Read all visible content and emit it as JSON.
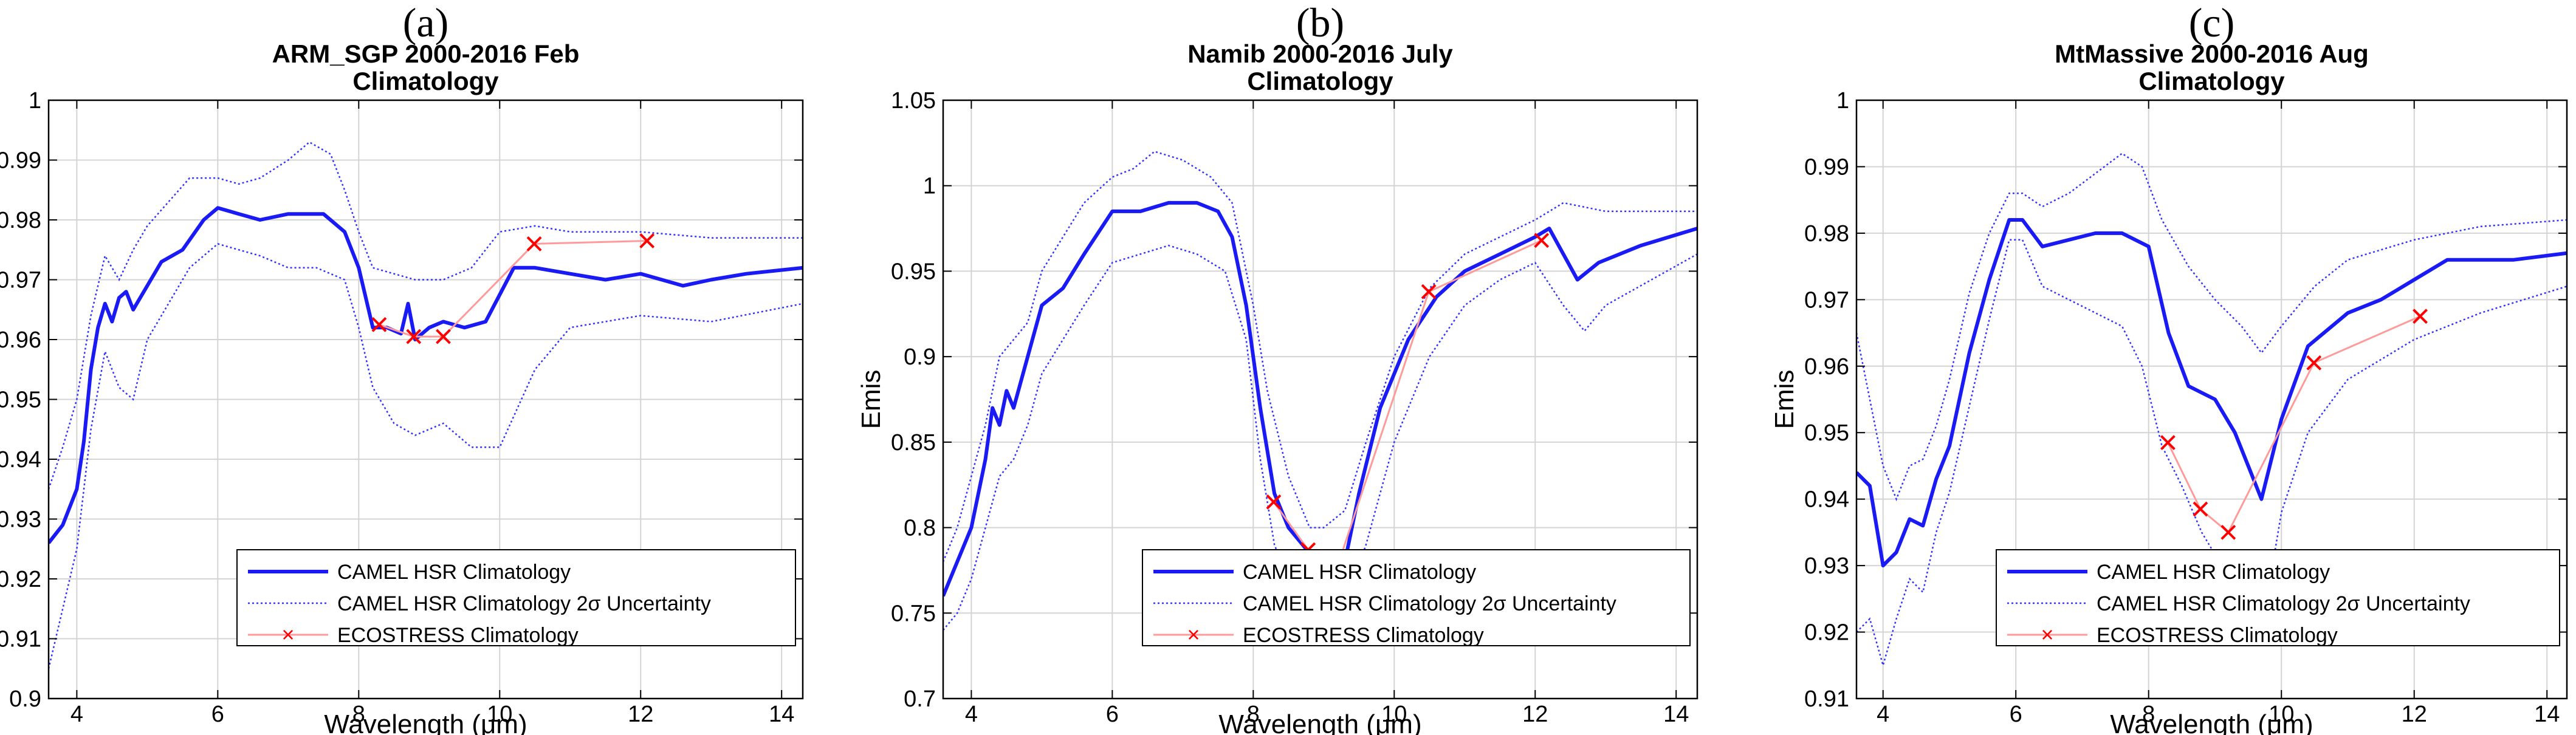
{
  "chart_data": [
    {
      "type": "line",
      "panel": "(a)",
      "title": [
        "ARM_SGP 2000-2016 Feb",
        "Climatology"
      ],
      "xlabel": "Wavelength (μm)",
      "ylabel": "Emis",
      "xlim": [
        3.6,
        14.3
      ],
      "ylim": [
        0.9,
        1.0
      ],
      "xticks": [
        4,
        6,
        8,
        10,
        12,
        14
      ],
      "yticks": [
        0.9,
        0.91,
        0.92,
        0.93,
        0.94,
        0.95,
        0.96,
        0.97,
        0.98,
        0.99,
        1.0
      ],
      "ytick_labels": [
        "0.9",
        "0.91",
        "0.92",
        "0.93",
        "0.94",
        "0.95",
        "0.96",
        "0.97",
        "0.98",
        "0.99",
        "1"
      ],
      "grid": true,
      "legend_position": "bottom-right",
      "legend": [
        "CAMEL HSR Climatology",
        "CAMEL HSR Climatology 2σ Uncertainty",
        "ECOSTRESS Climatology"
      ],
      "series": [
        {
          "name": "CAMEL HSR Climatology",
          "x": [
            3.6,
            3.8,
            4.0,
            4.1,
            4.2,
            4.3,
            4.4,
            4.5,
            4.6,
            4.7,
            4.8,
            5.0,
            5.2,
            5.5,
            5.8,
            6.0,
            6.3,
            6.6,
            7.0,
            7.5,
            7.8,
            8.0,
            8.2,
            8.4,
            8.6,
            8.7,
            8.8,
            9.0,
            9.2,
            9.5,
            9.8,
            10.2,
            10.5,
            11.0,
            11.5,
            12.0,
            12.3,
            12.6,
            13.0,
            13.5,
            14.3
          ],
          "y": [
            0.926,
            0.929,
            0.935,
            0.943,
            0.955,
            0.962,
            0.966,
            0.963,
            0.967,
            0.968,
            0.965,
            0.969,
            0.973,
            0.975,
            0.98,
            0.982,
            0.981,
            0.98,
            0.981,
            0.981,
            0.978,
            0.972,
            0.962,
            0.962,
            0.961,
            0.966,
            0.96,
            0.962,
            0.963,
            0.962,
            0.963,
            0.972,
            0.972,
            0.971,
            0.97,
            0.971,
            0.97,
            0.969,
            0.97,
            0.971,
            0.972
          ]
        },
        {
          "name": "CAMEL HSR Climatology 2σ Uncertainty (upper)",
          "x": [
            3.6,
            3.8,
            4.0,
            4.2,
            4.4,
            4.6,
            4.8,
            5.0,
            5.3,
            5.6,
            6.0,
            6.3,
            6.6,
            7.0,
            7.3,
            7.6,
            7.8,
            8.0,
            8.2,
            8.5,
            8.8,
            9.2,
            9.6,
            10.0,
            10.5,
            11.0,
            12.0,
            13.0,
            14.3
          ],
          "y": [
            0.935,
            0.942,
            0.95,
            0.964,
            0.974,
            0.97,
            0.975,
            0.979,
            0.983,
            0.987,
            0.987,
            0.986,
            0.987,
            0.99,
            0.993,
            0.991,
            0.985,
            0.978,
            0.972,
            0.971,
            0.97,
            0.97,
            0.972,
            0.978,
            0.979,
            0.978,
            0.978,
            0.977,
            0.977
          ]
        },
        {
          "name": "CAMEL HSR Climatology 2σ Uncertainty (lower)",
          "x": [
            3.6,
            3.8,
            4.0,
            4.2,
            4.4,
            4.6,
            4.8,
            5.0,
            5.3,
            5.6,
            6.0,
            6.3,
            6.6,
            7.0,
            7.4,
            7.8,
            8.0,
            8.2,
            8.5,
            8.8,
            9.2,
            9.6,
            10.0,
            10.5,
            11.0,
            12.0,
            13.0,
            14.3
          ],
          "y": [
            0.905,
            0.915,
            0.925,
            0.945,
            0.958,
            0.952,
            0.95,
            0.96,
            0.966,
            0.972,
            0.976,
            0.975,
            0.974,
            0.972,
            0.972,
            0.97,
            0.962,
            0.952,
            0.946,
            0.944,
            0.946,
            0.942,
            0.942,
            0.955,
            0.962,
            0.964,
            0.963,
            0.966
          ]
        },
        {
          "name": "ECOSTRESS Climatology",
          "x": [
            8.29,
            8.78,
            9.2,
            10.49,
            12.09
          ],
          "y": [
            0.9625,
            0.9605,
            0.9605,
            0.976,
            0.9765
          ]
        }
      ]
    },
    {
      "type": "line",
      "panel": "(b)",
      "title": [
        "Namib 2000-2016 July",
        "Climatology"
      ],
      "xlabel": "Wavelength (μm)",
      "ylabel": "Emis",
      "xlim": [
        3.6,
        14.3
      ],
      "ylim": [
        0.7,
        1.05
      ],
      "xticks": [
        4,
        6,
        8,
        10,
        12,
        14
      ],
      "yticks": [
        0.7,
        0.75,
        0.8,
        0.85,
        0.9,
        0.95,
        1.0,
        1.05
      ],
      "ytick_labels": [
        "0.7",
        "0.75",
        "0.8",
        "0.85",
        "0.9",
        "0.95",
        "1",
        "1.05"
      ],
      "grid": true,
      "legend_position": "bottom-right",
      "legend": [
        "CAMEL HSR Climatology",
        "CAMEL HSR Climatology 2σ Uncertainty",
        "ECOSTRESS Climatology"
      ],
      "series": [
        {
          "name": "CAMEL HSR Climatology",
          "x": [
            3.6,
            3.8,
            4.0,
            4.1,
            4.2,
            4.3,
            4.4,
            4.5,
            4.6,
            4.8,
            5.0,
            5.3,
            5.6,
            6.0,
            6.4,
            6.8,
            7.2,
            7.5,
            7.7,
            7.9,
            8.1,
            8.3,
            8.5,
            8.7,
            8.9,
            9.1,
            9.3,
            9.5,
            9.8,
            10.2,
            10.6,
            11.0,
            11.5,
            12.0,
            12.2,
            12.4,
            12.6,
            12.9,
            13.5,
            14.3
          ],
          "y": [
            0.76,
            0.78,
            0.8,
            0.82,
            0.84,
            0.87,
            0.86,
            0.88,
            0.87,
            0.9,
            0.93,
            0.94,
            0.96,
            0.985,
            0.985,
            0.99,
            0.99,
            0.985,
            0.97,
            0.93,
            0.87,
            0.82,
            0.8,
            0.79,
            0.78,
            0.775,
            0.78,
            0.82,
            0.87,
            0.91,
            0.935,
            0.95,
            0.96,
            0.97,
            0.975,
            0.96,
            0.945,
            0.955,
            0.965,
            0.975
          ]
        },
        {
          "name": "CAMEL HSR Climatology 2σ Uncertainty (upper)",
          "x": [
            3.6,
            3.8,
            4.0,
            4.2,
            4.4,
            4.6,
            4.8,
            5.0,
            5.3,
            5.6,
            6.0,
            6.3,
            6.6,
            7.0,
            7.4,
            7.7,
            8.0,
            8.2,
            8.5,
            8.8,
            9.0,
            9.3,
            9.6,
            10.0,
            10.5,
            11.0,
            11.5,
            12.0,
            12.4,
            13.0,
            14.3
          ],
          "y": [
            0.78,
            0.8,
            0.83,
            0.86,
            0.9,
            0.91,
            0.92,
            0.95,
            0.97,
            0.99,
            1.005,
            1.01,
            1.02,
            1.015,
            1.005,
            0.99,
            0.93,
            0.88,
            0.83,
            0.8,
            0.8,
            0.81,
            0.85,
            0.9,
            0.94,
            0.96,
            0.97,
            0.98,
            0.99,
            0.985,
            0.985
          ]
        },
        {
          "name": "CAMEL HSR Climatology 2σ Uncertainty (lower)",
          "x": [
            3.6,
            3.8,
            4.0,
            4.2,
            4.4,
            4.6,
            4.8,
            5.0,
            5.3,
            5.6,
            6.0,
            6.4,
            6.8,
            7.2,
            7.6,
            7.9,
            8.1,
            8.3,
            8.5,
            8.8,
            9.0,
            9.3,
            9.6,
            10.0,
            10.5,
            11.0,
            11.5,
            12.0,
            12.4,
            12.7,
            13.0,
            14.3
          ],
          "y": [
            0.74,
            0.75,
            0.77,
            0.8,
            0.83,
            0.84,
            0.86,
            0.89,
            0.91,
            0.93,
            0.955,
            0.96,
            0.965,
            0.96,
            0.95,
            0.91,
            0.84,
            0.79,
            0.77,
            0.76,
            0.755,
            0.755,
            0.79,
            0.85,
            0.9,
            0.93,
            0.945,
            0.955,
            0.93,
            0.915,
            0.93,
            0.96
          ]
        },
        {
          "name": "ECOSTRESS Climatology",
          "x": [
            8.29,
            8.78,
            9.2,
            10.49,
            12.09
          ],
          "y": [
            0.815,
            0.787,
            0.778,
            0.938,
            0.968
          ]
        }
      ]
    },
    {
      "type": "line",
      "panel": "(c)",
      "title": [
        "MtMassive 2000-2016 Aug",
        "Climatology"
      ],
      "xlabel": "Wavelength (μm)",
      "ylabel": "Emis",
      "xlim": [
        3.6,
        14.3
      ],
      "ylim": [
        0.91,
        1.0
      ],
      "xticks": [
        4,
        6,
        8,
        10,
        12,
        14
      ],
      "yticks": [
        0.91,
        0.92,
        0.93,
        0.94,
        0.95,
        0.96,
        0.97,
        0.98,
        0.99,
        1.0
      ],
      "ytick_labels": [
        "0.91",
        "0.92",
        "0.93",
        "0.94",
        "0.95",
        "0.96",
        "0.97",
        "0.98",
        "0.99",
        "1"
      ],
      "grid": true,
      "legend_position": "bottom-right",
      "legend": [
        "CAMEL HSR Climatology",
        "CAMEL HSR Climatology 2σ Uncertainty",
        "ECOSTRESS Climatology"
      ],
      "series": [
        {
          "name": "CAMEL HSR Climatology",
          "x": [
            3.6,
            3.8,
            4.0,
            4.2,
            4.4,
            4.6,
            4.8,
            5.0,
            5.3,
            5.6,
            5.9,
            6.1,
            6.4,
            6.8,
            7.2,
            7.6,
            8.0,
            8.3,
            8.6,
            9.0,
            9.3,
            9.5,
            9.7,
            10.0,
            10.4,
            11.0,
            11.5,
            12.0,
            12.5,
            13.0,
            13.5,
            14.3
          ],
          "y": [
            0.944,
            0.942,
            0.93,
            0.932,
            0.937,
            0.936,
            0.943,
            0.948,
            0.962,
            0.973,
            0.982,
            0.982,
            0.978,
            0.979,
            0.98,
            0.98,
            0.978,
            0.965,
            0.957,
            0.955,
            0.95,
            0.945,
            0.94,
            0.952,
            0.963,
            0.968,
            0.97,
            0.973,
            0.976,
            0.976,
            0.976,
            0.977
          ]
        },
        {
          "name": "CAMEL HSR Climatology 2σ Uncertainty (upper)",
          "x": [
            3.6,
            3.8,
            4.0,
            4.2,
            4.4,
            4.6,
            4.8,
            5.0,
            5.3,
            5.6,
            5.9,
            6.1,
            6.4,
            6.8,
            7.2,
            7.6,
            7.9,
            8.2,
            8.6,
            9.0,
            9.4,
            9.7,
            10.0,
            10.5,
            11.0,
            12.0,
            13.0,
            14.3
          ],
          "y": [
            0.965,
            0.955,
            0.945,
            0.94,
            0.945,
            0.946,
            0.951,
            0.958,
            0.971,
            0.98,
            0.986,
            0.986,
            0.984,
            0.986,
            0.989,
            0.992,
            0.99,
            0.982,
            0.975,
            0.97,
            0.966,
            0.962,
            0.966,
            0.972,
            0.976,
            0.979,
            0.981,
            0.982
          ]
        },
        {
          "name": "CAMEL HSR Climatology 2σ Uncertainty (lower)",
          "x": [
            3.6,
            3.8,
            4.0,
            4.2,
            4.4,
            4.6,
            4.8,
            5.0,
            5.3,
            5.6,
            5.9,
            6.1,
            6.4,
            6.8,
            7.2,
            7.6,
            7.9,
            8.2,
            8.5,
            8.8,
            9.1,
            9.4,
            9.7,
            10.0,
            10.4,
            11.0,
            12.0,
            13.0,
            14.3
          ],
          "y": [
            0.92,
            0.922,
            0.915,
            0.922,
            0.928,
            0.926,
            0.935,
            0.941,
            0.954,
            0.967,
            0.979,
            0.979,
            0.972,
            0.97,
            0.968,
            0.966,
            0.96,
            0.948,
            0.942,
            0.935,
            0.93,
            0.925,
            0.92,
            0.938,
            0.95,
            0.958,
            0.964,
            0.968,
            0.972
          ]
        },
        {
          "name": "ECOSTRESS Climatology",
          "x": [
            8.29,
            8.78,
            9.2,
            10.49,
            12.09
          ],
          "y": [
            0.9485,
            0.9385,
            0.935,
            0.9605,
            0.9675
          ]
        }
      ]
    }
  ],
  "legend_symbol": "×",
  "colors": {
    "main": "#1a1af5",
    "uncertainty": "#3333ff",
    "ecostress_line": "#ff9a9a",
    "ecostress_marker": "#ff0000",
    "grid": "#d4d4d4",
    "axis": "#000000"
  }
}
